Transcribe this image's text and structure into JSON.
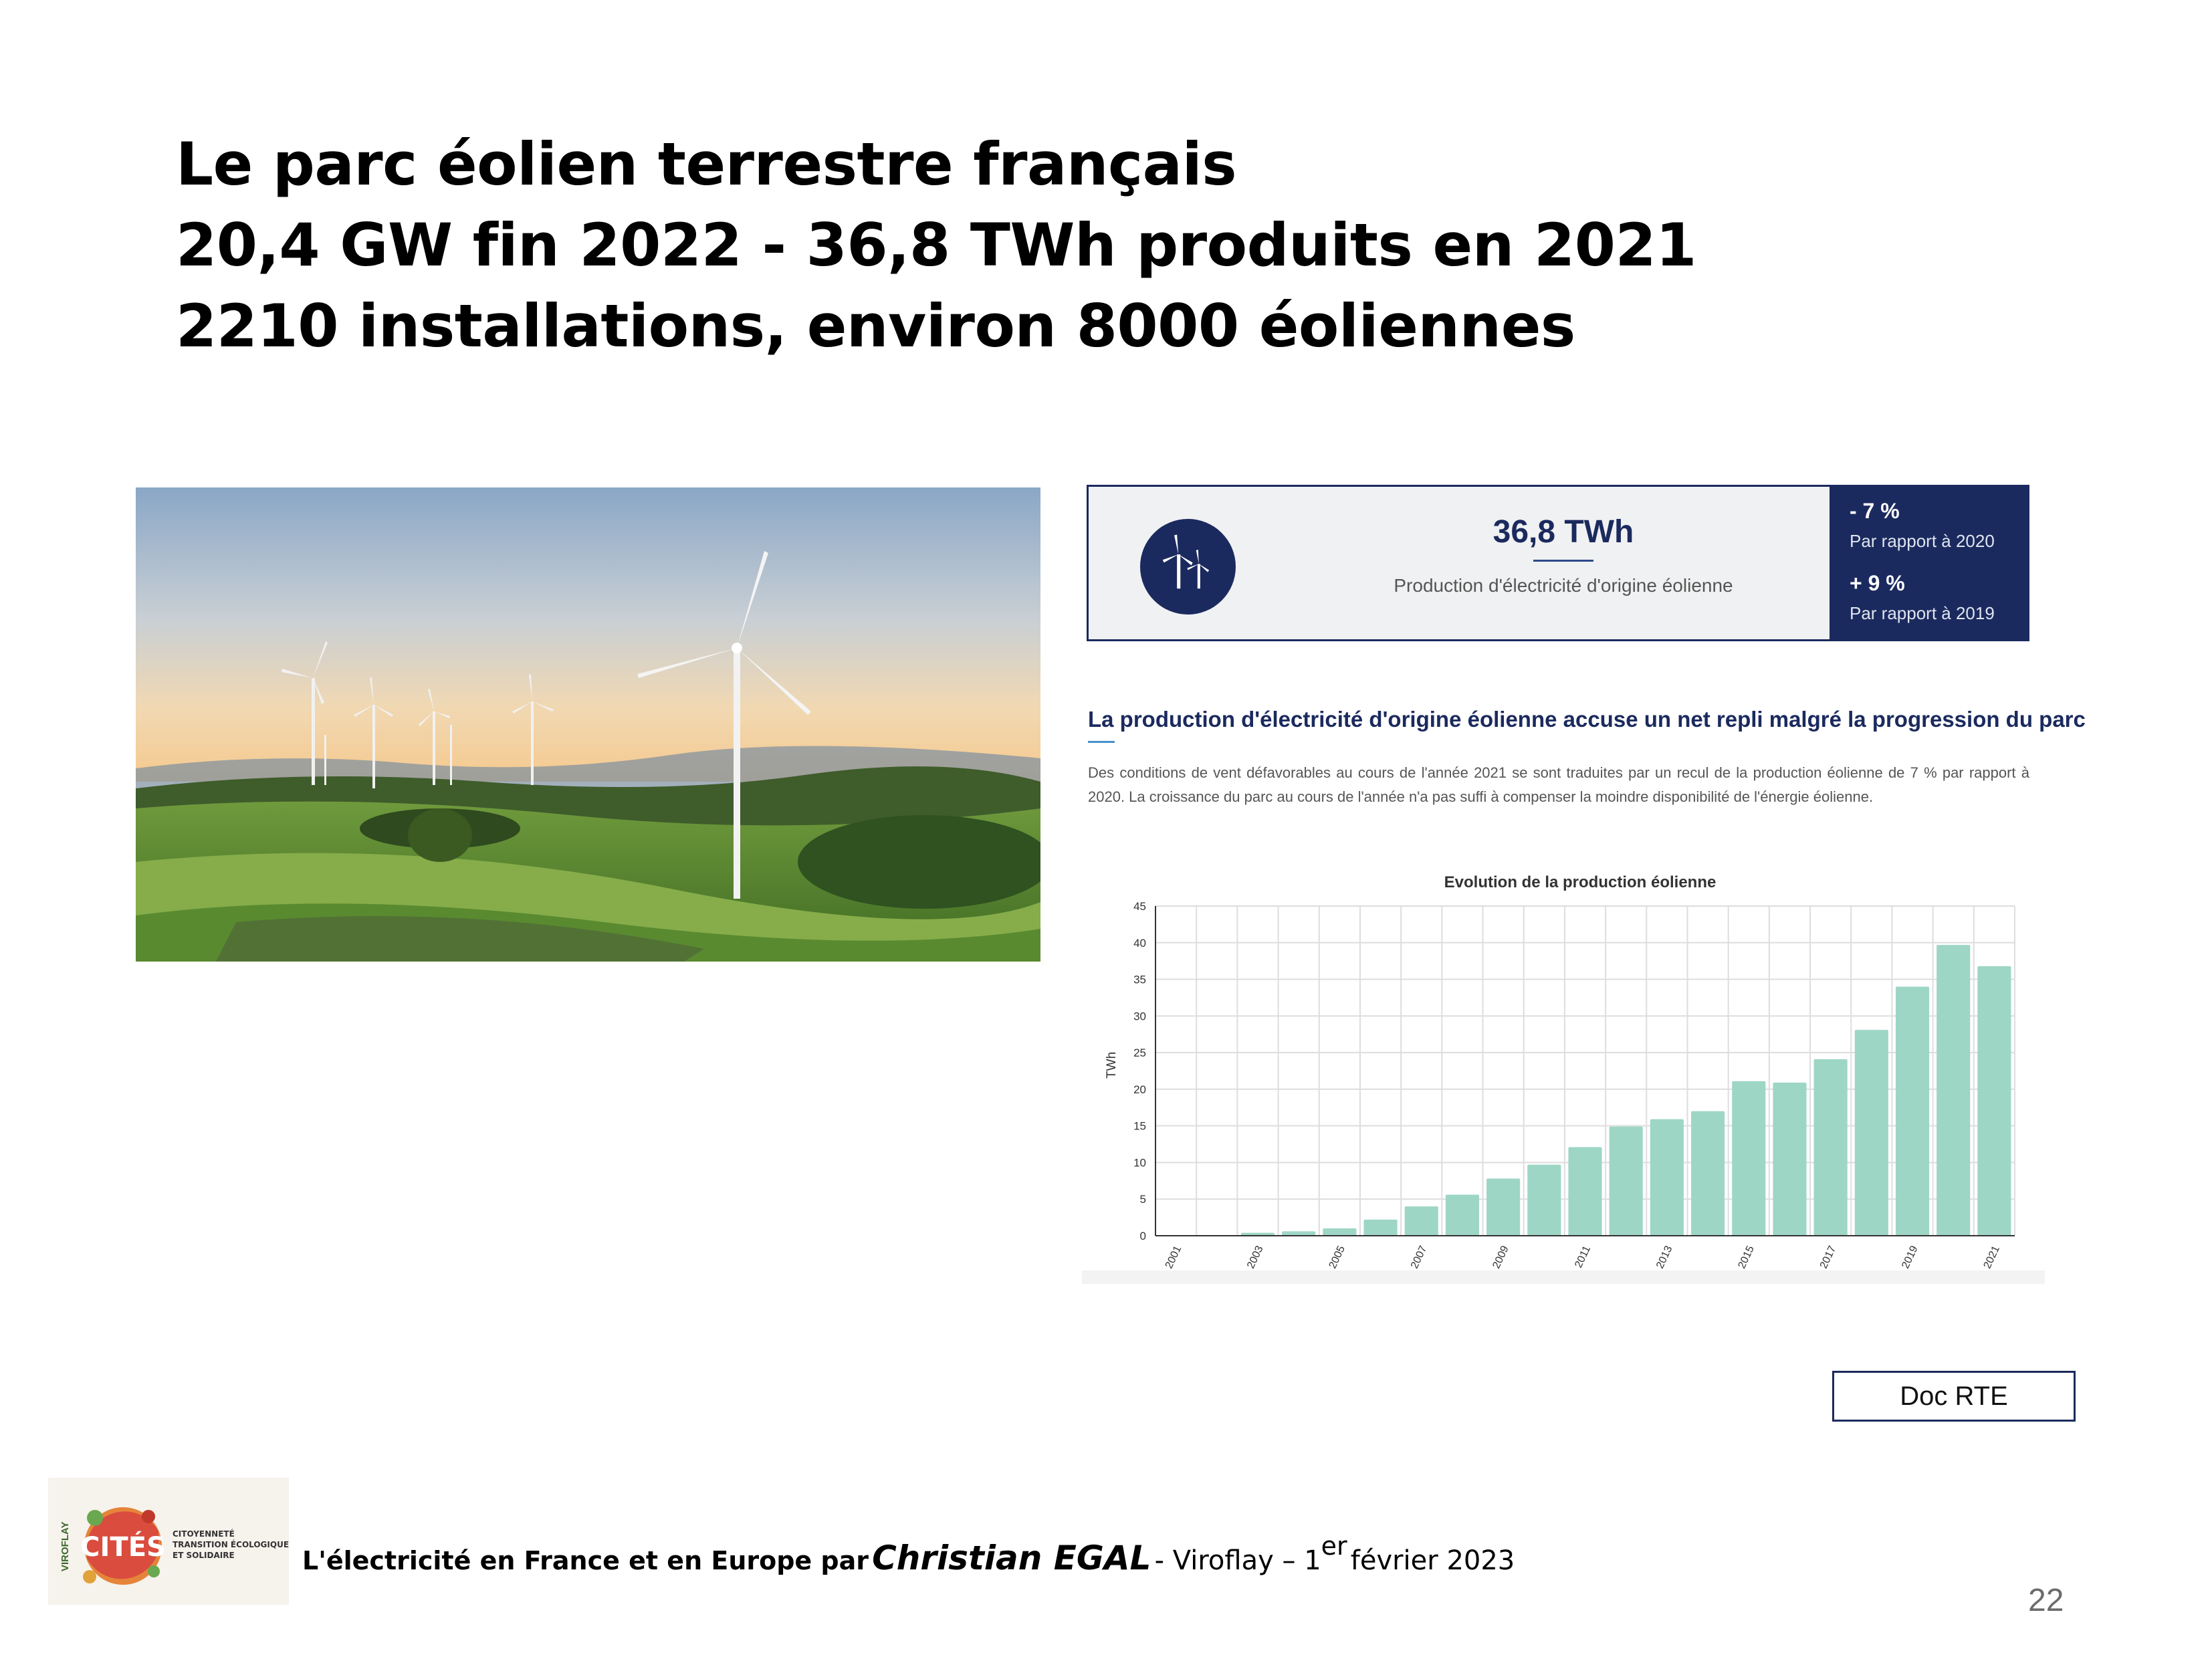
{
  "slide": {
    "title_lines": [
      "Le parc éolien terrestre français",
      "20,4 GW fin 2022 - 36,8 TWh produits en 2021",
      "2210 installations, environ 8000 éoliennes"
    ],
    "page_number": "22"
  },
  "stat_card": {
    "icon": "wind-turbines-icon",
    "value": "36,8 TWh",
    "description": "Production d'électricité d'origine éolienne",
    "deltas": [
      {
        "value": "- 7 %",
        "label": "Par rapport à 2020"
      },
      {
        "value": "+ 9 %",
        "label": "Par rapport à 2019"
      }
    ]
  },
  "article": {
    "heading": "La production d'électricité d'origine éolienne accuse un net repli malgré la progression du parc",
    "body": "Des conditions de vent défavorables au cours de l'année 2021 se sont traduites par un recul de la production éolienne de 7 % par rapport à 2020. La croissance du parc au cours de l'année n'a pas suffi à compenser la moindre disponibilité de l'énergie éolienne."
  },
  "chart_data": {
    "type": "bar",
    "title": "Evolution de la production éolienne",
    "xlabel": "",
    "ylabel": "TWh",
    "ylim": [
      0,
      45
    ],
    "yticks": [
      0,
      5,
      10,
      15,
      20,
      25,
      30,
      35,
      40,
      45
    ],
    "categories": [
      "2001",
      "2002",
      "2003",
      "2004",
      "2005",
      "2006",
      "2007",
      "2008",
      "2009",
      "2010",
      "2011",
      "2012",
      "2013",
      "2014",
      "2015",
      "2016",
      "2017",
      "2018",
      "2019",
      "2020",
      "2021"
    ],
    "xtick_labels": [
      "2001",
      "2003",
      "2005",
      "2007",
      "2009",
      "2011",
      "2013",
      "2015",
      "2017",
      "2019",
      "2021"
    ],
    "values": [
      0,
      0,
      0.4,
      0.6,
      1.0,
      2.2,
      4.0,
      5.6,
      7.8,
      9.7,
      12.1,
      14.9,
      15.9,
      17.0,
      21.1,
      20.9,
      24.1,
      28.1,
      34.0,
      39.7,
      36.8
    ],
    "grid": true,
    "colors": {
      "bar": "#9ed6c6",
      "grid": "#dddddd",
      "axis": "#333333"
    }
  },
  "doc_label": "Doc RTE",
  "logo": {
    "side_text": "VIROFLAY",
    "name": "CITÉS",
    "tagline": [
      "CITOYENNETÉ",
      "TRANSITION ÉCOLOGIQUE",
      "ET SOLIDAIRE"
    ]
  },
  "footer": {
    "part1": "L'électricité en France et en Europe par",
    "author": "Christian EGAL",
    "part2": "- Viroflay – 1",
    "sup": "er",
    "part3": "février 2023"
  },
  "colors": {
    "navy": "#1b2a5e",
    "bar": "#9ed6c6",
    "accent": "#4a90c8"
  }
}
